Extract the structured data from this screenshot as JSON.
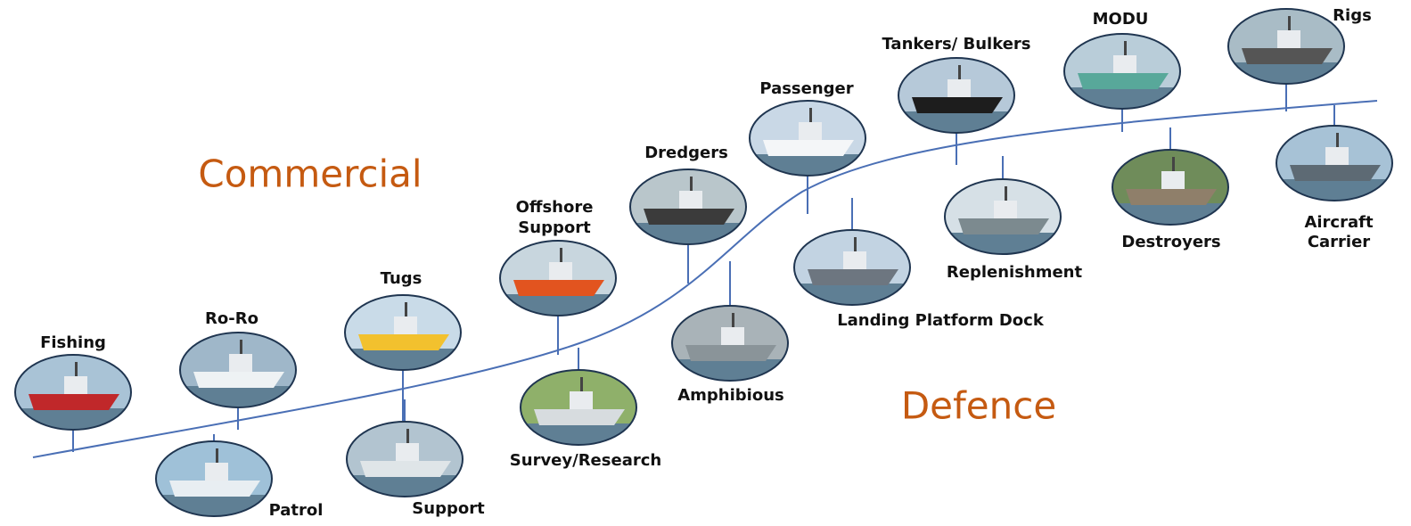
{
  "sections": {
    "commercial": "Commercial",
    "defence": "Defence"
  },
  "nodes": [
    {
      "lines": [
        "Fishing"
      ]
    },
    {
      "lines": [
        "Ro-Ro"
      ]
    },
    {
      "lines": [
        "Tugs"
      ]
    },
    {
      "lines": [
        "Offshore",
        "Support"
      ]
    },
    {
      "lines": [
        "Dredgers"
      ]
    },
    {
      "lines": [
        "Passenger"
      ]
    },
    {
      "lines": [
        "Tankers/ Bulkers"
      ]
    },
    {
      "lines": [
        "MODU"
      ]
    },
    {
      "lines": [
        "Rigs"
      ]
    },
    {
      "lines": [
        "Patrol"
      ]
    },
    {
      "lines": [
        "Support"
      ]
    },
    {
      "lines": [
        "Survey/Research"
      ]
    },
    {
      "lines": [
        "Amphibious"
      ]
    },
    {
      "lines": [
        "Landing Platform Dock"
      ]
    },
    {
      "lines": [
        "Replenishment"
      ]
    },
    {
      "lines": [
        "Destroyers"
      ]
    },
    {
      "lines": [
        "Aircraft",
        "Carrier"
      ]
    }
  ]
}
